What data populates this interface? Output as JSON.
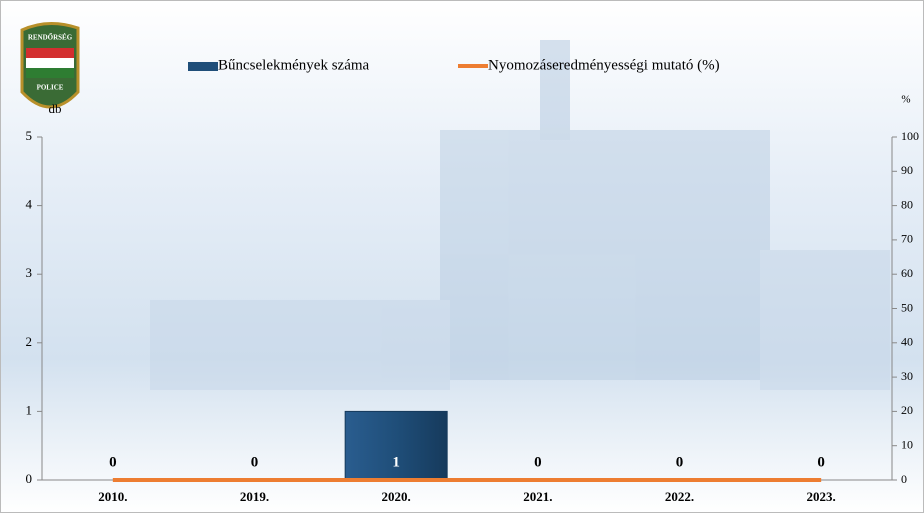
{
  "logo": {
    "top": "RENDŐRSÉG",
    "bottom": "POLICE"
  },
  "chart_data": {
    "type": "bar",
    "categories": [
      "2010.",
      "2019.",
      "2020.",
      "2021.",
      "2022.",
      "2023."
    ],
    "series": [
      {
        "name": "Bűncselekmények száma",
        "color": "#1f4e79",
        "values": [
          0,
          0,
          1,
          0,
          0,
          0
        ]
      },
      {
        "name": "Nyomozáseredményességi mutató (%)",
        "color": "#ed7d31",
        "axis": "y2",
        "type": "line",
        "values": [
          0,
          0,
          0,
          0,
          0,
          0
        ]
      }
    ],
    "ylabel": "db",
    "y2label": "%",
    "ylim": [
      0,
      5
    ],
    "yticks": [
      0,
      1,
      2,
      3,
      4,
      5
    ],
    "y2lim": [
      0,
      100
    ],
    "y2ticks": [
      0,
      10,
      20,
      30,
      40,
      50,
      60,
      70,
      80,
      90,
      100
    ],
    "legend": "top"
  }
}
